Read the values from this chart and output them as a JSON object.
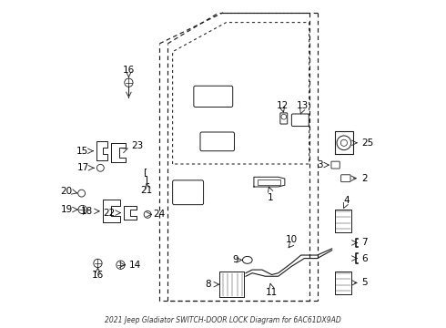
{
  "title": "2021 Jeep Gladiator SWITCH-DOOR LOCK Diagram for 6AC61DX9AD",
  "bg_color": "#ffffff",
  "line_color": "#1a1a1a",
  "label_color": "#000000",
  "font_size": 7.5
}
